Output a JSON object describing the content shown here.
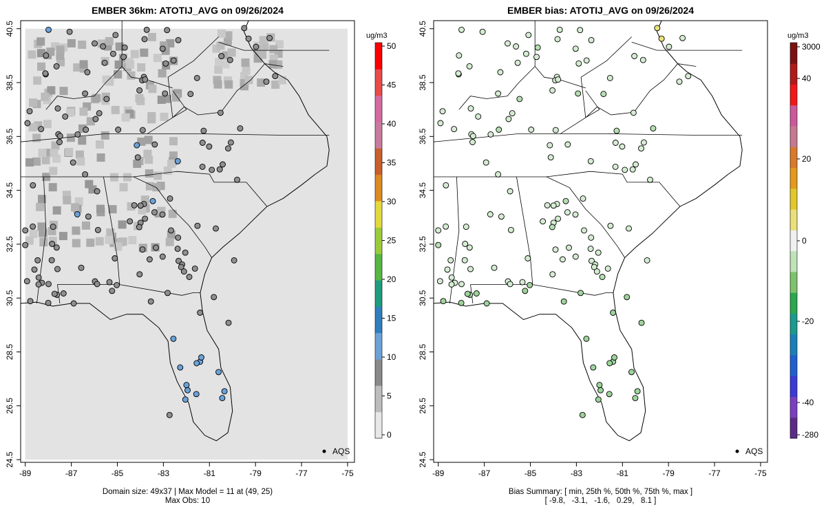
{
  "left_panel": {
    "title": "EMBER 36km: ATOTIJ_AVG on 09/26/2024",
    "caption_line1": "Domain size: 49x37 | Max Model = 11 at (49, 25)",
    "caption_line2": "Max Obs: 10",
    "colorbar_unit": "ug/m3",
    "colorbar_ticks": [
      "0",
      "5",
      "10",
      "15",
      "20",
      "25",
      "30",
      "35",
      "40",
      "45",
      "50"
    ],
    "legend_label": "AQS"
  },
  "right_panel": {
    "title": "EMBER bias: ATOTIJ_AVG on 09/26/2024",
    "caption_line1": "Bias Summary: [ min, 25th %, 50th %, 75th %, max ]",
    "caption_line2": "[ -9.8,   -3.1,   -1.6,   0.29,   8.1 ]",
    "colorbar_unit": "ug/m3",
    "colorbar_ticks": [
      "3000",
      "40",
      "20",
      "0",
      "-20",
      "-40",
      "-280"
    ],
    "legend_label": "AQS"
  },
  "axes": {
    "x_ticks": [
      "-89",
      "-87",
      "-85",
      "-83",
      "-81",
      "-79",
      "-77",
      "-75"
    ],
    "y_ticks": [
      "24.5",
      "26.5",
      "28.5",
      "30.5",
      "32.5",
      "34.5",
      "36.5",
      "38.5",
      "40.5"
    ],
    "lon_range": [
      -89.2,
      -74.7
    ],
    "lat_range": [
      24.4,
      40.8
    ]
  },
  "colors": {
    "model_background": "#e3e3e3",
    "obs_gray": "#8f8f8f",
    "obs_blue": "#6aa2d8",
    "bias_green": "#9ed39c",
    "bias_light": "#d5ecd2",
    "bias_yellow": "#e9e27a"
  }
}
